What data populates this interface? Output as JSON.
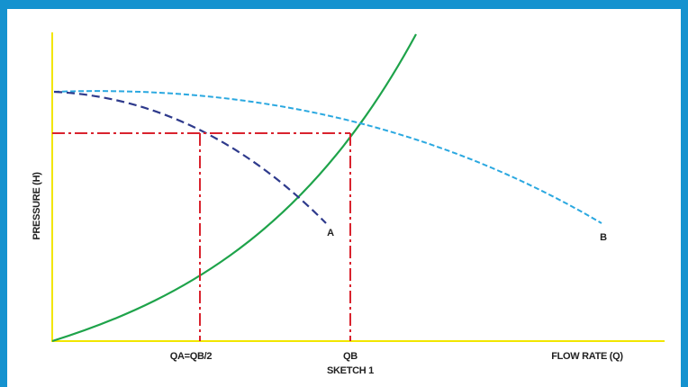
{
  "diagram": {
    "y_axis_label": "PRESSURE (H)",
    "x_axis_label": "FLOW RATE (Q)",
    "caption": "SKETCH 1",
    "tick_qa": "QA=QB/2",
    "tick_qb": "QB",
    "curve_a_label": "A",
    "curve_b_label": "B",
    "colors": {
      "frame": "#1592cf",
      "axes": "#f2e600",
      "system_curve": "#1ea34a",
      "pump_curve_a": "#2e3a8c",
      "pump_curve_b": "#2aa8e0",
      "guide_lines": "#d9232e"
    }
  }
}
